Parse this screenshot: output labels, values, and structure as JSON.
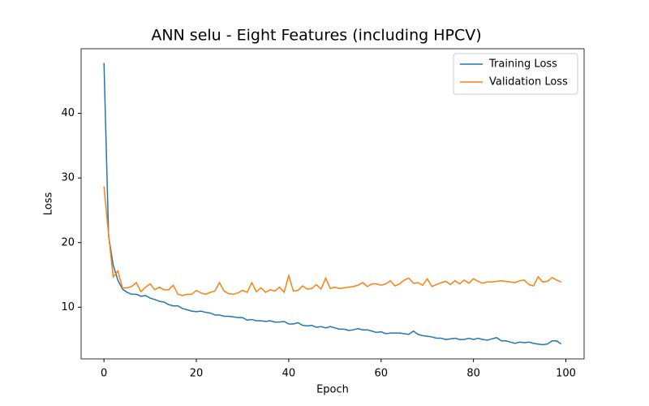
{
  "chart_data": {
    "type": "line",
    "title": "ANN selu - Eight Features (including HPCV)",
    "xlabel": "Epoch",
    "ylabel": "Loss",
    "x": [
      0,
      1,
      2,
      3,
      4,
      5,
      6,
      7,
      8,
      9,
      10,
      11,
      12,
      13,
      14,
      15,
      16,
      17,
      18,
      19,
      20,
      21,
      22,
      23,
      24,
      25,
      26,
      27,
      28,
      29,
      30,
      31,
      32,
      33,
      34,
      35,
      36,
      37,
      38,
      39,
      40,
      41,
      42,
      43,
      44,
      45,
      46,
      47,
      48,
      49,
      50,
      51,
      52,
      53,
      54,
      55,
      56,
      57,
      58,
      59,
      60,
      61,
      62,
      63,
      64,
      65,
      66,
      67,
      68,
      69,
      70,
      71,
      72,
      73,
      74,
      75,
      76,
      77,
      78,
      79,
      80,
      81,
      82,
      83,
      84,
      85,
      86,
      87,
      88,
      89,
      90,
      91,
      92,
      93,
      94,
      95,
      96,
      97,
      98,
      99
    ],
    "series": [
      {
        "name": "Training Loss",
        "color": "#1f77b4",
        "values": [
          47.8,
          21,
          16.5,
          14.2,
          12.8,
          12.3,
          12.0,
          12.0,
          11.7,
          11.8,
          11.4,
          11.2,
          10.9,
          10.8,
          10.4,
          10.2,
          10.2,
          9.8,
          9.6,
          9.4,
          9.3,
          9.4,
          9.2,
          9.1,
          8.8,
          8.8,
          8.6,
          8.6,
          8.5,
          8.4,
          8.4,
          8.0,
          8.1,
          7.9,
          7.9,
          7.8,
          7.9,
          7.7,
          7.7,
          7.8,
          7.4,
          7.4,
          7.6,
          7.2,
          7.1,
          7.2,
          6.9,
          7.0,
          6.8,
          7.0,
          6.8,
          6.6,
          6.6,
          6.4,
          6.5,
          6.7,
          6.5,
          6.5,
          6.3,
          6.1,
          6.2,
          5.9,
          6.0,
          6.0,
          6.0,
          5.9,
          5.8,
          6.3,
          5.8,
          5.6,
          5.5,
          5.4,
          5.2,
          5.2,
          5.0,
          5.1,
          5.2,
          5.0,
          5.0,
          5.2,
          5.0,
          5.2,
          5.0,
          4.9,
          5.1,
          5.3,
          4.8,
          4.8,
          4.6,
          4.4,
          4.6,
          4.5,
          4.6,
          4.4,
          4.3,
          4.2,
          4.3,
          4.8,
          4.8,
          4.3
        ]
      },
      {
        "name": "Validation Loss",
        "color": "#ff7f0e",
        "values": [
          28.7,
          21.2,
          14.7,
          15.6,
          13.0,
          13.0,
          13.2,
          13.8,
          12.4,
          13.1,
          13.6,
          12.7,
          13.1,
          12.7,
          12.7,
          13.4,
          12.0,
          11.8,
          12.0,
          12.0,
          12.6,
          12.2,
          12.0,
          12.3,
          12.5,
          13.8,
          12.5,
          12.1,
          12.0,
          12.2,
          12.6,
          12.3,
          13.8,
          12.4,
          13.0,
          12.3,
          12.7,
          12.5,
          13.1,
          12.3,
          14.9,
          12.5,
          12.6,
          13.3,
          12.8,
          12.9,
          13.5,
          12.8,
          14.5,
          12.9,
          13.1,
          12.9,
          13.0,
          13.1,
          13.2,
          13.4,
          13.8,
          13.2,
          13.6,
          13.6,
          13.4,
          13.6,
          14.1,
          13.3,
          13.6,
          14.2,
          14.5,
          13.7,
          13.8,
          13.4,
          14.4,
          13.2,
          13.5,
          13.8,
          14.0,
          13.5,
          14.1,
          13.6,
          14.2,
          13.7,
          14.4,
          14.0,
          13.7,
          13.9,
          13.9,
          14.0,
          14.1,
          14.0,
          13.9,
          13.8,
          14.1,
          14.2,
          13.5,
          13.3,
          14.7,
          13.9,
          14.0,
          14.6,
          14.2,
          13.9
        ]
      }
    ],
    "xlim": [
      -4.95,
      103.95
    ],
    "ylim": [
      2.0,
      50.0
    ],
    "xticks": [
      0,
      20,
      40,
      60,
      80,
      100
    ],
    "yticks": [
      10,
      20,
      30,
      40
    ],
    "legend": "upper right"
  }
}
